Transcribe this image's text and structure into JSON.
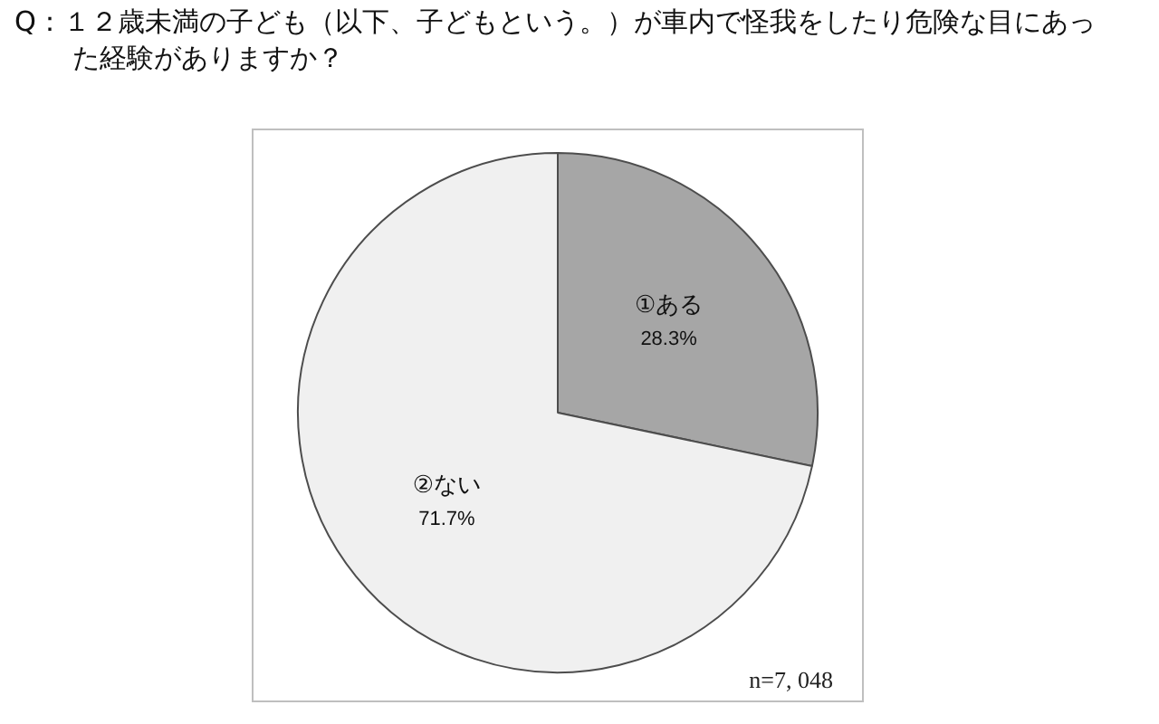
{
  "chart_data": {
    "type": "pie",
    "title": "Q：１２歳未満の子ども（以下、子どもという。）が車内で怪我をしたり危険な目にあった経験がありますか？",
    "categories": [
      "①ある",
      "②ない"
    ],
    "values": [
      28.3,
      71.7
    ],
    "value_labels": [
      "28.3%",
      "71.7%"
    ],
    "colors": [
      "#a6a6a6",
      "#f0f0f0"
    ],
    "annotations": [
      "n=7, 048"
    ]
  }
}
